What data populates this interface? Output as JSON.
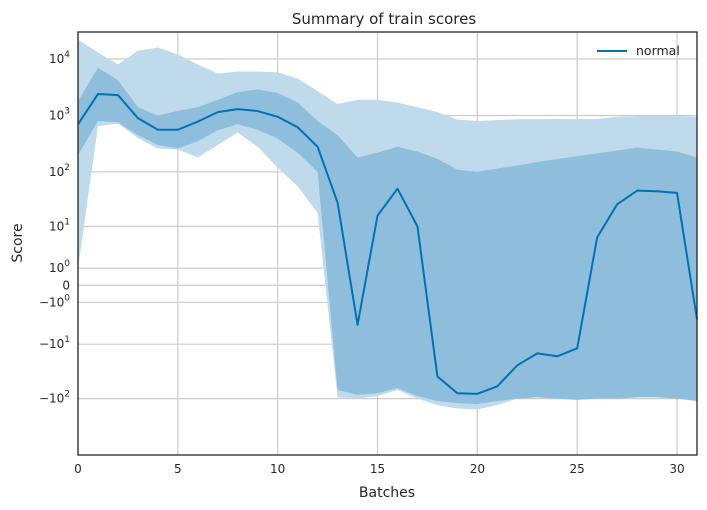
{
  "chart_data": {
    "type": "line",
    "title": "Summary of train scores",
    "xlabel": "Batches",
    "ylabel": "Score",
    "xlim": [
      0,
      31
    ],
    "yscale": "symlog",
    "ylim": [
      -1000,
      30000
    ],
    "grid": true,
    "legend_position": "upper-right",
    "x_ticks": [
      0,
      5,
      10,
      15,
      20,
      25,
      30
    ],
    "y_ticks": [
      {
        "value": 10000,
        "base": "10",
        "exp": "4"
      },
      {
        "value": 1000,
        "base": "10",
        "exp": "3"
      },
      {
        "value": 100,
        "base": "10",
        "exp": "2"
      },
      {
        "value": 10,
        "base": "10",
        "exp": "1"
      },
      {
        "value": 1,
        "base": "10",
        "exp": "0"
      },
      {
        "value": 0,
        "base": "0",
        "exp": ""
      },
      {
        "value": -1,
        "base": "−10",
        "exp": "0"
      },
      {
        "value": -10,
        "base": "−10",
        "exp": "1"
      },
      {
        "value": -100,
        "base": "−10",
        "exp": "2"
      }
    ],
    "colors": {
      "line": "#0072b2",
      "band_outer": "#bedaeb",
      "band_inner": "#8fbedc",
      "grid": "#cccccc",
      "frame": "#262626"
    },
    "series": [
      {
        "name": "normal",
        "x": [
          0,
          1,
          2,
          3,
          4,
          5,
          6,
          7,
          8,
          9,
          10,
          11,
          12,
          13,
          14,
          15,
          16,
          17,
          18,
          19,
          20,
          21,
          22,
          23,
          24,
          25,
          26,
          27,
          28,
          29,
          30,
          31
        ],
        "mean": [
          700,
          2400,
          2300,
          900,
          560,
          560,
          780,
          1150,
          1300,
          1200,
          950,
          620,
          280,
          28,
          -4,
          16,
          50,
          10,
          -40,
          -80,
          -82,
          -60,
          -25,
          -15,
          -17,
          -12,
          6,
          26,
          46,
          45,
          42,
          -3
        ],
        "inner_upper": [
          1800,
          7000,
          4200,
          1400,
          1000,
          1200,
          1400,
          1900,
          2600,
          2900,
          2500,
          1700,
          800,
          450,
          180,
          220,
          280,
          230,
          170,
          110,
          100,
          115,
          130,
          150,
          170,
          190,
          215,
          240,
          270,
          250,
          230,
          180
        ],
        "inner_lower": [
          200,
          800,
          760,
          450,
          300,
          260,
          350,
          550,
          700,
          560,
          390,
          220,
          100,
          -70,
          -85,
          -80,
          -65,
          -90,
          -110,
          -120,
          -125,
          -110,
          -100,
          -95,
          -100,
          -105,
          -100,
          -100,
          -95,
          -95,
          -100,
          -110
        ],
        "outer_upper": [
          22000,
          13000,
          8000,
          14000,
          16000,
          12000,
          8000,
          5500,
          6000,
          6000,
          5800,
          4500,
          2700,
          1600,
          1900,
          1900,
          1700,
          1400,
          1150,
          850,
          800,
          830,
          860,
          860,
          870,
          860,
          870,
          950,
          980,
          980,
          980,
          950
        ],
        "outer_lower": [
          1,
          650,
          720,
          400,
          260,
          250,
          180,
          300,
          500,
          280,
          120,
          55,
          18,
          -95,
          -100,
          -90,
          -70,
          -100,
          -130,
          -150,
          -155,
          -130,
          -100,
          -95,
          -100,
          -100,
          -100,
          -95,
          -80,
          -80,
          -85,
          -100
        ]
      }
    ]
  }
}
